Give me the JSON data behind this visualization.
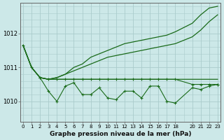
{
  "title": "Graphe pression niveau de la mer (hPa)",
  "background_color": "#cce8e8",
  "grid_color": "#aacccc",
  "line_color": "#1a6b1a",
  "xlim": [
    -0.3,
    23.3
  ],
  "ylim": [
    1009.4,
    1012.9
  ],
  "yticks": [
    1010,
    1011,
    1012
  ],
  "xticks": [
    0,
    1,
    2,
    3,
    4,
    5,
    6,
    7,
    8,
    9,
    10,
    11,
    12,
    13,
    14,
    15,
    16,
    17,
    18,
    20,
    21,
    22,
    23
  ],
  "series": [
    {
      "x": [
        0,
        1,
        2,
        3,
        4,
        5,
        6,
        7,
        8,
        9,
        10,
        11,
        12,
        13,
        14,
        15,
        16,
        17,
        18,
        20,
        21,
        22,
        23
      ],
      "y": [
        1011.65,
        1011.0,
        1010.7,
        1010.65,
        1010.65,
        1010.65,
        1010.65,
        1010.65,
        1010.65,
        1010.65,
        1010.65,
        1010.65,
        1010.65,
        1010.65,
        1010.65,
        1010.65,
        1010.65,
        1010.65,
        1010.65,
        1010.65,
        1010.65,
        1010.65,
        1010.65
      ],
      "marker": null,
      "lw": 0.9
    },
    {
      "x": [
        0,
        1,
        2,
        3,
        4,
        5,
        6,
        7,
        8,
        9,
        10,
        11,
        12,
        13,
        14,
        15,
        16,
        17,
        18,
        20,
        21,
        22,
        23
      ],
      "y": [
        1011.65,
        1011.0,
        1010.7,
        1010.65,
        1010.7,
        1010.8,
        1010.9,
        1011.0,
        1011.1,
        1011.2,
        1011.3,
        1011.35,
        1011.4,
        1011.45,
        1011.5,
        1011.55,
        1011.6,
        1011.65,
        1011.7,
        1011.9,
        1012.1,
        1012.35,
        1012.55
      ],
      "marker": null,
      "lw": 0.9
    },
    {
      "x": [
        0,
        1,
        2,
        3,
        4,
        5,
        6,
        7,
        8,
        9,
        10,
        11,
        12,
        13,
        14,
        15,
        16,
        17,
        18,
        20,
        21,
        22,
        23
      ],
      "y": [
        1011.65,
        1011.0,
        1010.7,
        1010.65,
        1010.7,
        1010.8,
        1011.0,
        1011.1,
        1011.3,
        1011.4,
        1011.5,
        1011.6,
        1011.7,
        1011.75,
        1011.8,
        1011.85,
        1011.9,
        1011.95,
        1012.05,
        1012.3,
        1012.55,
        1012.75,
        1012.8
      ],
      "marker": null,
      "lw": 0.9
    },
    {
      "x": [
        0,
        1,
        2,
        3,
        4,
        5,
        6,
        7,
        8,
        9,
        10,
        11,
        12,
        13,
        14,
        15,
        16,
        17,
        18,
        20,
        21,
        22,
        23
      ],
      "y": [
        1011.65,
        1011.0,
        1010.7,
        1010.3,
        1010.0,
        1010.45,
        1010.55,
        1010.2,
        1010.2,
        1010.4,
        1010.1,
        1010.05,
        1010.3,
        1010.3,
        1010.1,
        1010.45,
        1010.45,
        1010.0,
        1009.95,
        1010.4,
        1010.35,
        1010.45,
        1010.5
      ],
      "marker": "+",
      "lw": 0.8
    },
    {
      "x": [
        2,
        3,
        4,
        5,
        6,
        7,
        8,
        9,
        10,
        11,
        12,
        13,
        14,
        15,
        16,
        17,
        18,
        20,
        21,
        22,
        23
      ],
      "y": [
        1010.7,
        1010.65,
        1010.65,
        1010.65,
        1010.65,
        1010.65,
        1010.65,
        1010.65,
        1010.65,
        1010.65,
        1010.65,
        1010.65,
        1010.65,
        1010.65,
        1010.65,
        1010.65,
        1010.65,
        1010.5,
        1010.5,
        1010.5,
        1010.5
      ],
      "marker": "+",
      "lw": 0.8
    }
  ]
}
